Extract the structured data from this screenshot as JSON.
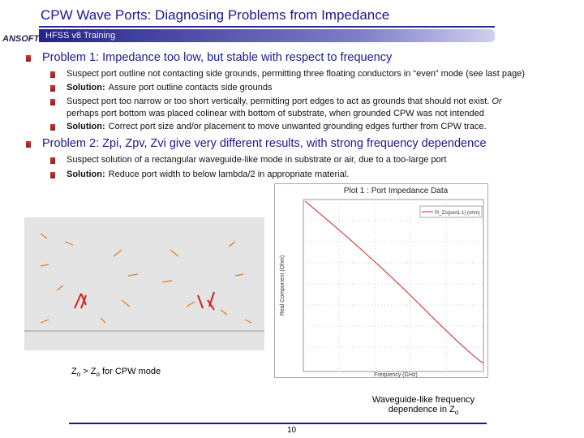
{
  "header": {
    "title": "CPW Wave Ports: Diagnosing Problems from Impedance",
    "subtitle": "HFSS v8 Training",
    "logo": "ANSOFT"
  },
  "problems": [
    {
      "text": "Problem 1: Impedance too low, but stable with respect to frequency",
      "items": [
        {
          "text": "Suspect port outline not contacting side grounds, permitting three floating conductors in “even” mode (see last page)"
        },
        {
          "label": "Solution:",
          "text": "Assure port outline contacts side grounds"
        },
        {
          "text": "Suspect port too narrow or too short vertically, permitting port edges to act as grounds that should not exist.",
          "emphasis": "Or",
          "rest": "perhaps port bottom was placed colinear with bottom of substrate, when grounded CPW was not intended"
        },
        {
          "label": "Solution:",
          "text": "Correct port size and/or placement to move unwanted grounding edges further from CPW trace."
        }
      ]
    },
    {
      "text": "Problem 2: Zpi, Zpv, Zvi give very different results, with strong frequency dependence",
      "items": [
        {
          "text": "Suspect solution of a rectangular waveguide-like mode in substrate or air, due to a too-large port"
        },
        {
          "label": "Solution:",
          "text": "Reduce port width to below lambda/2 in appropriate material."
        }
      ]
    }
  ],
  "plot": {
    "title": "Plot 1 : Port Impedance Data",
    "legend": "Pi_Zo(port1:1) (ohm)",
    "y_label": "Real Component (Ohm)",
    "x_label": "Frequency (GHz)"
  },
  "captions": {
    "field": {
      "parts": [
        "Z",
        "o",
        " > Z",
        "o",
        " for CPW mode"
      ]
    },
    "plot": {
      "line": "Waveguide-like frequency",
      "text": "dependence in Z",
      "sub": "o"
    }
  },
  "footer": {
    "page": "10"
  }
}
